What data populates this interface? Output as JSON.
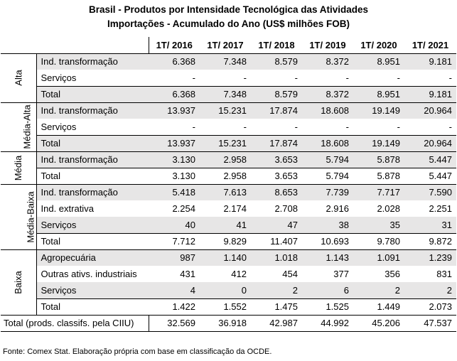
{
  "title_line1": "Brasil - Produtos por Intensidade Tecnológica das Atividades",
  "title_line2": "Importações - Acumulado do Ano (US$ milhões FOB)",
  "columns": [
    "1T/ 2016",
    "1T/ 2017",
    "1T/ 2018",
    "1T/ 2019",
    "1T/ 2020",
    "1T/ 2021"
  ],
  "groups": [
    {
      "name": "Alta",
      "rows": [
        {
          "label": "Ind. transformação",
          "values": [
            "6.368",
            "7.348",
            "8.579",
            "8.372",
            "8.951",
            "9.181"
          ]
        },
        {
          "label": "Serviços",
          "values": [
            "-",
            "-",
            "-",
            "-",
            "-",
            "-"
          ]
        },
        {
          "label": "Total",
          "values": [
            "6.368",
            "7.348",
            "8.579",
            "8.372",
            "8.951",
            "9.181"
          ]
        }
      ]
    },
    {
      "name": "Média-Alta",
      "rows": [
        {
          "label": "Ind. transformação",
          "values": [
            "13.937",
            "15.231",
            "17.874",
            "18.608",
            "19.149",
            "20.964"
          ]
        },
        {
          "label": "Serviços",
          "values": [
            "-",
            "-",
            "-",
            "-",
            "-",
            "-"
          ]
        },
        {
          "label": "Total",
          "values": [
            "13.937",
            "15.231",
            "17.874",
            "18.608",
            "19.149",
            "20.964"
          ]
        }
      ]
    },
    {
      "name": "Média",
      "rows": [
        {
          "label": "Ind. transformação",
          "values": [
            "3.130",
            "2.958",
            "3.653",
            "5.794",
            "5.878",
            "5.447"
          ]
        },
        {
          "label": "Total",
          "values": [
            "3.130",
            "2.958",
            "3.653",
            "5.794",
            "5.878",
            "5.447"
          ]
        }
      ]
    },
    {
      "name": "Média-Baixa",
      "rows": [
        {
          "label": "Ind. transformação",
          "values": [
            "5.418",
            "7.613",
            "8.653",
            "7.739",
            "7.717",
            "7.590"
          ]
        },
        {
          "label": "Ind. extrativa",
          "values": [
            "2.254",
            "2.174",
            "2.708",
            "2.916",
            "2.028",
            "2.251"
          ]
        },
        {
          "label": "Serviços",
          "values": [
            "40",
            "41",
            "47",
            "38",
            "35",
            "31"
          ]
        },
        {
          "label": "Total",
          "values": [
            "7.712",
            "9.829",
            "11.407",
            "10.693",
            "9.780",
            "9.872"
          ]
        }
      ]
    },
    {
      "name": "Baixa",
      "rows": [
        {
          "label": "Agropecuária",
          "values": [
            "987",
            "1.140",
            "1.018",
            "1.143",
            "1.091",
            "1.239"
          ]
        },
        {
          "label": "Outras ativs. industriais",
          "values": [
            "431",
            "412",
            "454",
            "377",
            "356",
            "831"
          ]
        },
        {
          "label": "Serviços",
          "values": [
            "4",
            "0",
            "2",
            "6",
            "2",
            "2"
          ]
        },
        {
          "label": "Total",
          "values": [
            "1.422",
            "1.552",
            "1.475",
            "1.525",
            "1.449",
            "2.073"
          ]
        }
      ]
    }
  ],
  "grand_total": {
    "label": "Total (prods. classifs. pela CIIU)",
    "values": [
      "32.569",
      "36.918",
      "42.987",
      "44.992",
      "45.206",
      "47.537"
    ]
  },
  "source": "Fonte: Comex Stat. Elaboração própria com base em classificação da OCDE.",
  "colors": {
    "shade": "#e7e6e6",
    "border": "#000000"
  }
}
